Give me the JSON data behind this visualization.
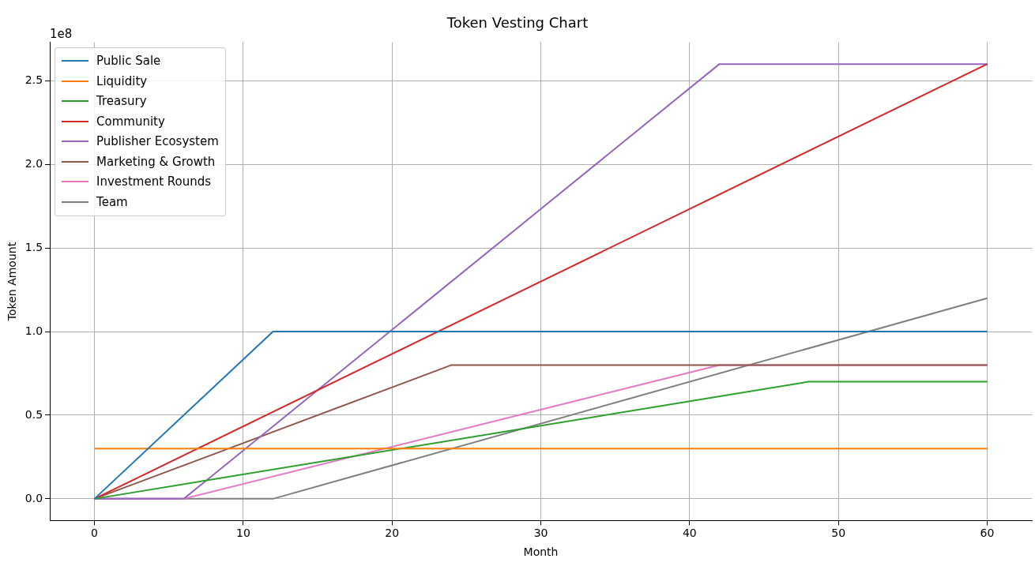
{
  "chart_data": {
    "type": "line",
    "title": "Token Vesting Chart",
    "xlabel": "Month",
    "ylabel": "Token Amount",
    "annotations": [
      "1e8"
    ],
    "xlim": [
      -3,
      63
    ],
    "xticks": [
      0,
      10,
      20,
      30,
      40,
      50,
      60
    ],
    "ylim": [
      -0.13,
      2.73
    ],
    "yticks": [
      {
        "value": 0,
        "label": "0.0"
      },
      {
        "value": 0.5,
        "label": "0.5"
      },
      {
        "value": 1,
        "label": "1.0"
      },
      {
        "value": 1.5,
        "label": "1.5"
      },
      {
        "value": 2,
        "label": "2.0"
      },
      {
        "value": 2.5,
        "label": "2.5"
      }
    ],
    "grid": true,
    "legend": "top left",
    "marker": "none",
    "line_style": "solid",
    "series": [
      {
        "name": "Public Sale",
        "color": "#1f77b4",
        "x": [
          0,
          12,
          60
        ],
        "values": [
          0,
          1.0,
          1.0
        ]
      },
      {
        "name": "Liquidity",
        "color": "#ff7f0e",
        "x": [
          0,
          60
        ],
        "values": [
          0.3,
          0.3
        ]
      },
      {
        "name": "Treasury",
        "color": "#2ca02c",
        "x": [
          0,
          48,
          60
        ],
        "values": [
          0,
          0.7,
          0.7
        ]
      },
      {
        "name": "Community",
        "color": "#d62728",
        "x": [
          0,
          60
        ],
        "values": [
          0,
          2.6
        ]
      },
      {
        "name": "Publisher Ecosystem",
        "color": "#9467bd",
        "x": [
          0,
          6,
          42,
          60
        ],
        "values": [
          0,
          0,
          2.6,
          2.6
        ]
      },
      {
        "name": "Marketing & Growth",
        "color": "#8c564b",
        "x": [
          0,
          24,
          60
        ],
        "values": [
          0,
          0.8,
          0.8
        ]
      },
      {
        "name": "Investment Rounds",
        "color": "#e377c2",
        "x": [
          0,
          6,
          42,
          60
        ],
        "values": [
          0,
          0,
          0.8,
          0.8
        ]
      },
      {
        "name": "Team",
        "color": "#7f7f7f",
        "x": [
          0,
          12,
          60
        ],
        "values": [
          0,
          0,
          1.2
        ]
      }
    ]
  }
}
